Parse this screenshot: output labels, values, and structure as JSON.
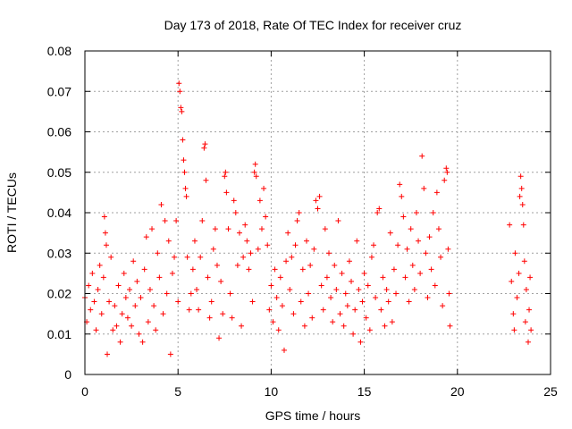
{
  "chart_data": {
    "type": "scatter",
    "title": "Day 173 of 2018, Rate Of TEC Index for receiver cruz",
    "xlabel": "GPS time / hours",
    "ylabel": "ROTI / TECUs",
    "xlim": [
      0,
      25
    ],
    "ylim": [
      0,
      0.08
    ],
    "x_ticks": [
      0,
      5,
      10,
      15,
      20,
      25
    ],
    "x_tick_labels": [
      "0",
      "5",
      "10",
      "15",
      "20",
      "25"
    ],
    "y_ticks": [
      0,
      0.01,
      0.02,
      0.03,
      0.04,
      0.05,
      0.06,
      0.07,
      0.08
    ],
    "y_tick_labels": [
      "0",
      "0.01",
      "0.02",
      "0.03",
      "0.04",
      "0.05",
      "0.06",
      "0.07",
      "0.08"
    ],
    "grid": true,
    "marker": "+",
    "color": "#ff0000",
    "series": [
      {
        "name": "ROTI",
        "points": [
          [
            0.0,
            0.019
          ],
          [
            0.1,
            0.013
          ],
          [
            0.2,
            0.022
          ],
          [
            0.3,
            0.016
          ],
          [
            0.4,
            0.025
          ],
          [
            0.5,
            0.018
          ],
          [
            0.6,
            0.011
          ],
          [
            0.7,
            0.021
          ],
          [
            0.8,
            0.027
          ],
          [
            0.9,
            0.015
          ],
          [
            1.0,
            0.024
          ],
          [
            1.05,
            0.039
          ],
          [
            1.1,
            0.035
          ],
          [
            1.15,
            0.032
          ],
          [
            1.2,
            0.005
          ],
          [
            1.3,
            0.018
          ],
          [
            1.4,
            0.029
          ],
          [
            1.5,
            0.011
          ],
          [
            1.6,
            0.017
          ],
          [
            1.7,
            0.012
          ],
          [
            1.8,
            0.022
          ],
          [
            1.9,
            0.008
          ],
          [
            2.0,
            0.015
          ],
          [
            2.1,
            0.025
          ],
          [
            2.2,
            0.019
          ],
          [
            2.3,
            0.014
          ],
          [
            2.4,
            0.021
          ],
          [
            2.5,
            0.012
          ],
          [
            2.6,
            0.028
          ],
          [
            2.7,
            0.017
          ],
          [
            2.8,
            0.023
          ],
          [
            2.9,
            0.01
          ],
          [
            3.0,
            0.019
          ],
          [
            3.1,
            0.008
          ],
          [
            3.2,
            0.026
          ],
          [
            3.3,
            0.034
          ],
          [
            3.4,
            0.013
          ],
          [
            3.5,
            0.021
          ],
          [
            3.6,
            0.036
          ],
          [
            3.7,
            0.017
          ],
          [
            3.8,
            0.011
          ],
          [
            3.9,
            0.03
          ],
          [
            4.0,
            0.024
          ],
          [
            4.1,
            0.042
          ],
          [
            4.2,
            0.015
          ],
          [
            4.3,
            0.038
          ],
          [
            4.4,
            0.02
          ],
          [
            4.5,
            0.033
          ],
          [
            4.6,
            0.005
          ],
          [
            4.7,
            0.025
          ],
          [
            4.8,
            0.029
          ],
          [
            4.9,
            0.038
          ],
          [
            5.0,
            0.018
          ],
          [
            5.05,
            0.072
          ],
          [
            5.1,
            0.07
          ],
          [
            5.15,
            0.066
          ],
          [
            5.2,
            0.065
          ],
          [
            5.25,
            0.058
          ],
          [
            5.3,
            0.053
          ],
          [
            5.35,
            0.05
          ],
          [
            5.4,
            0.046
          ],
          [
            5.45,
            0.044
          ],
          [
            5.5,
            0.029
          ],
          [
            5.6,
            0.016
          ],
          [
            5.7,
            0.02
          ],
          [
            5.8,
            0.026
          ],
          [
            5.9,
            0.033
          ],
          [
            6.0,
            0.021
          ],
          [
            6.1,
            0.016
          ],
          [
            6.2,
            0.029
          ],
          [
            6.3,
            0.038
          ],
          [
            6.4,
            0.056
          ],
          [
            6.45,
            0.057
          ],
          [
            6.5,
            0.048
          ],
          [
            6.6,
            0.024
          ],
          [
            6.7,
            0.014
          ],
          [
            6.8,
            0.018
          ],
          [
            6.9,
            0.031
          ],
          [
            7.0,
            0.036
          ],
          [
            7.1,
            0.027
          ],
          [
            7.2,
            0.009
          ],
          [
            7.3,
            0.023
          ],
          [
            7.4,
            0.015
          ],
          [
            7.5,
            0.049
          ],
          [
            7.55,
            0.05
          ],
          [
            7.6,
            0.045
          ],
          [
            7.7,
            0.036
          ],
          [
            7.8,
            0.02
          ],
          [
            7.9,
            0.014
          ],
          [
            8.0,
            0.043
          ],
          [
            8.1,
            0.04
          ],
          [
            8.2,
            0.027
          ],
          [
            8.3,
            0.035
          ],
          [
            8.4,
            0.012
          ],
          [
            8.5,
            0.029
          ],
          [
            8.6,
            0.037
          ],
          [
            8.7,
            0.033
          ],
          [
            8.8,
            0.026
          ],
          [
            8.9,
            0.03
          ],
          [
            9.0,
            0.018
          ],
          [
            9.1,
            0.05
          ],
          [
            9.15,
            0.052
          ],
          [
            9.2,
            0.049
          ],
          [
            9.3,
            0.031
          ],
          [
            9.4,
            0.043
          ],
          [
            9.5,
            0.036
          ],
          [
            9.6,
            0.046
          ],
          [
            9.7,
            0.039
          ],
          [
            9.8,
            0.032
          ],
          [
            9.9,
            0.016
          ],
          [
            10.0,
            0.022
          ],
          [
            10.1,
            0.013
          ],
          [
            10.2,
            0.026
          ],
          [
            10.3,
            0.019
          ],
          [
            10.4,
            0.011
          ],
          [
            10.5,
            0.024
          ],
          [
            10.6,
            0.017
          ],
          [
            10.7,
            0.006
          ],
          [
            10.8,
            0.028
          ],
          [
            10.9,
            0.035
          ],
          [
            11.0,
            0.021
          ],
          [
            11.1,
            0.029
          ],
          [
            11.2,
            0.015
          ],
          [
            11.3,
            0.032
          ],
          [
            11.4,
            0.038
          ],
          [
            11.5,
            0.04
          ],
          [
            11.6,
            0.018
          ],
          [
            11.7,
            0.026
          ],
          [
            11.8,
            0.012
          ],
          [
            11.9,
            0.033
          ],
          [
            12.0,
            0.02
          ],
          [
            12.1,
            0.027
          ],
          [
            12.2,
            0.014
          ],
          [
            12.3,
            0.031
          ],
          [
            12.4,
            0.043
          ],
          [
            12.5,
            0.041
          ],
          [
            12.6,
            0.044
          ],
          [
            12.7,
            0.022
          ],
          [
            12.8,
            0.016
          ],
          [
            12.9,
            0.036
          ],
          [
            13.0,
            0.024
          ],
          [
            13.1,
            0.03
          ],
          [
            13.2,
            0.019
          ],
          [
            13.3,
            0.013
          ],
          [
            13.4,
            0.027
          ],
          [
            13.5,
            0.021
          ],
          [
            13.6,
            0.038
          ],
          [
            13.7,
            0.015
          ],
          [
            13.8,
            0.025
          ],
          [
            13.9,
            0.012
          ],
          [
            14.0,
            0.02
          ],
          [
            14.1,
            0.017
          ],
          [
            14.2,
            0.028
          ],
          [
            14.3,
            0.023
          ],
          [
            14.4,
            0.01
          ],
          [
            14.5,
            0.016
          ],
          [
            14.6,
            0.033
          ],
          [
            14.7,
            0.021
          ],
          [
            14.8,
            0.008
          ],
          [
            14.9,
            0.018
          ],
          [
            15.0,
            0.025
          ],
          [
            15.1,
            0.014
          ],
          [
            15.2,
            0.022
          ],
          [
            15.3,
            0.011
          ],
          [
            15.4,
            0.029
          ],
          [
            15.5,
            0.032
          ],
          [
            15.6,
            0.019
          ],
          [
            15.7,
            0.04
          ],
          [
            15.8,
            0.041
          ],
          [
            15.9,
            0.016
          ],
          [
            16.0,
            0.024
          ],
          [
            16.1,
            0.012
          ],
          [
            16.2,
            0.021
          ],
          [
            16.3,
            0.018
          ],
          [
            16.4,
            0.035
          ],
          [
            16.5,
            0.013
          ],
          [
            16.6,
            0.026
          ],
          [
            16.7,
            0.02
          ],
          [
            16.8,
            0.032
          ],
          [
            16.9,
            0.047
          ],
          [
            17.0,
            0.044
          ],
          [
            17.1,
            0.039
          ],
          [
            17.2,
            0.024
          ],
          [
            17.3,
            0.031
          ],
          [
            17.4,
            0.018
          ],
          [
            17.5,
            0.036
          ],
          [
            17.6,
            0.027
          ],
          [
            17.7,
            0.021
          ],
          [
            17.8,
            0.04
          ],
          [
            17.9,
            0.033
          ],
          [
            18.0,
            0.025
          ],
          [
            18.1,
            0.054
          ],
          [
            18.2,
            0.046
          ],
          [
            18.3,
            0.03
          ],
          [
            18.4,
            0.019
          ],
          [
            18.5,
            0.034
          ],
          [
            18.6,
            0.026
          ],
          [
            18.7,
            0.04
          ],
          [
            18.8,
            0.022
          ],
          [
            18.9,
            0.045
          ],
          [
            19.0,
            0.036
          ],
          [
            19.1,
            0.029
          ],
          [
            19.2,
            0.017
          ],
          [
            19.3,
            0.048
          ],
          [
            19.4,
            0.051
          ],
          [
            19.45,
            0.05
          ],
          [
            19.5,
            0.031
          ],
          [
            19.55,
            0.02
          ],
          [
            19.6,
            0.012
          ],
          [
            22.8,
            0.037
          ],
          [
            22.9,
            0.023
          ],
          [
            23.0,
            0.015
          ],
          [
            23.05,
            0.011
          ],
          [
            23.1,
            0.03
          ],
          [
            23.2,
            0.019
          ],
          [
            23.3,
            0.025
          ],
          [
            23.35,
            0.044
          ],
          [
            23.4,
            0.049
          ],
          [
            23.45,
            0.046
          ],
          [
            23.5,
            0.042
          ],
          [
            23.55,
            0.037
          ],
          [
            23.6,
            0.028
          ],
          [
            23.65,
            0.013
          ],
          [
            23.7,
            0.021
          ],
          [
            23.8,
            0.008
          ],
          [
            23.85,
            0.016
          ],
          [
            23.9,
            0.024
          ],
          [
            23.95,
            0.011
          ]
        ]
      }
    ]
  }
}
